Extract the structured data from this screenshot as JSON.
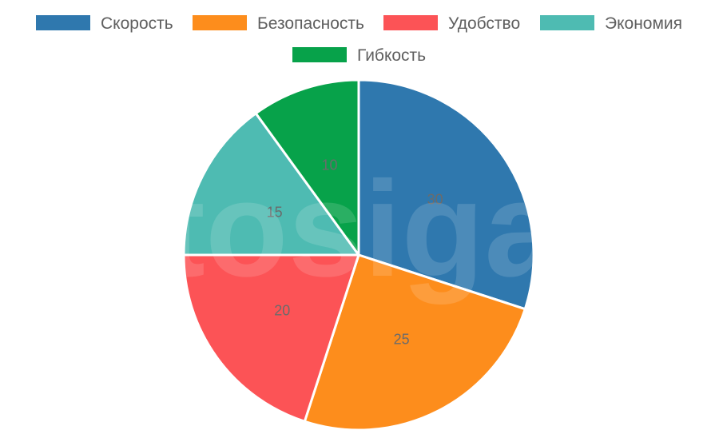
{
  "chart_data": {
    "type": "pie",
    "categories": [
      "Скорость",
      "Безопасность",
      "Удобство",
      "Экономия",
      "Гибкость"
    ],
    "values": [
      30,
      25,
      20,
      15,
      10
    ],
    "colors": [
      "#2f78ae",
      "#fd8d1c",
      "#fc5356",
      "#4ebbb2",
      "#07a24a"
    ],
    "title": "",
    "legend_position": "top",
    "start_angle_deg": 0,
    "direction": "clockwise"
  },
  "watermark": {
    "text": "autosiga.ru"
  }
}
